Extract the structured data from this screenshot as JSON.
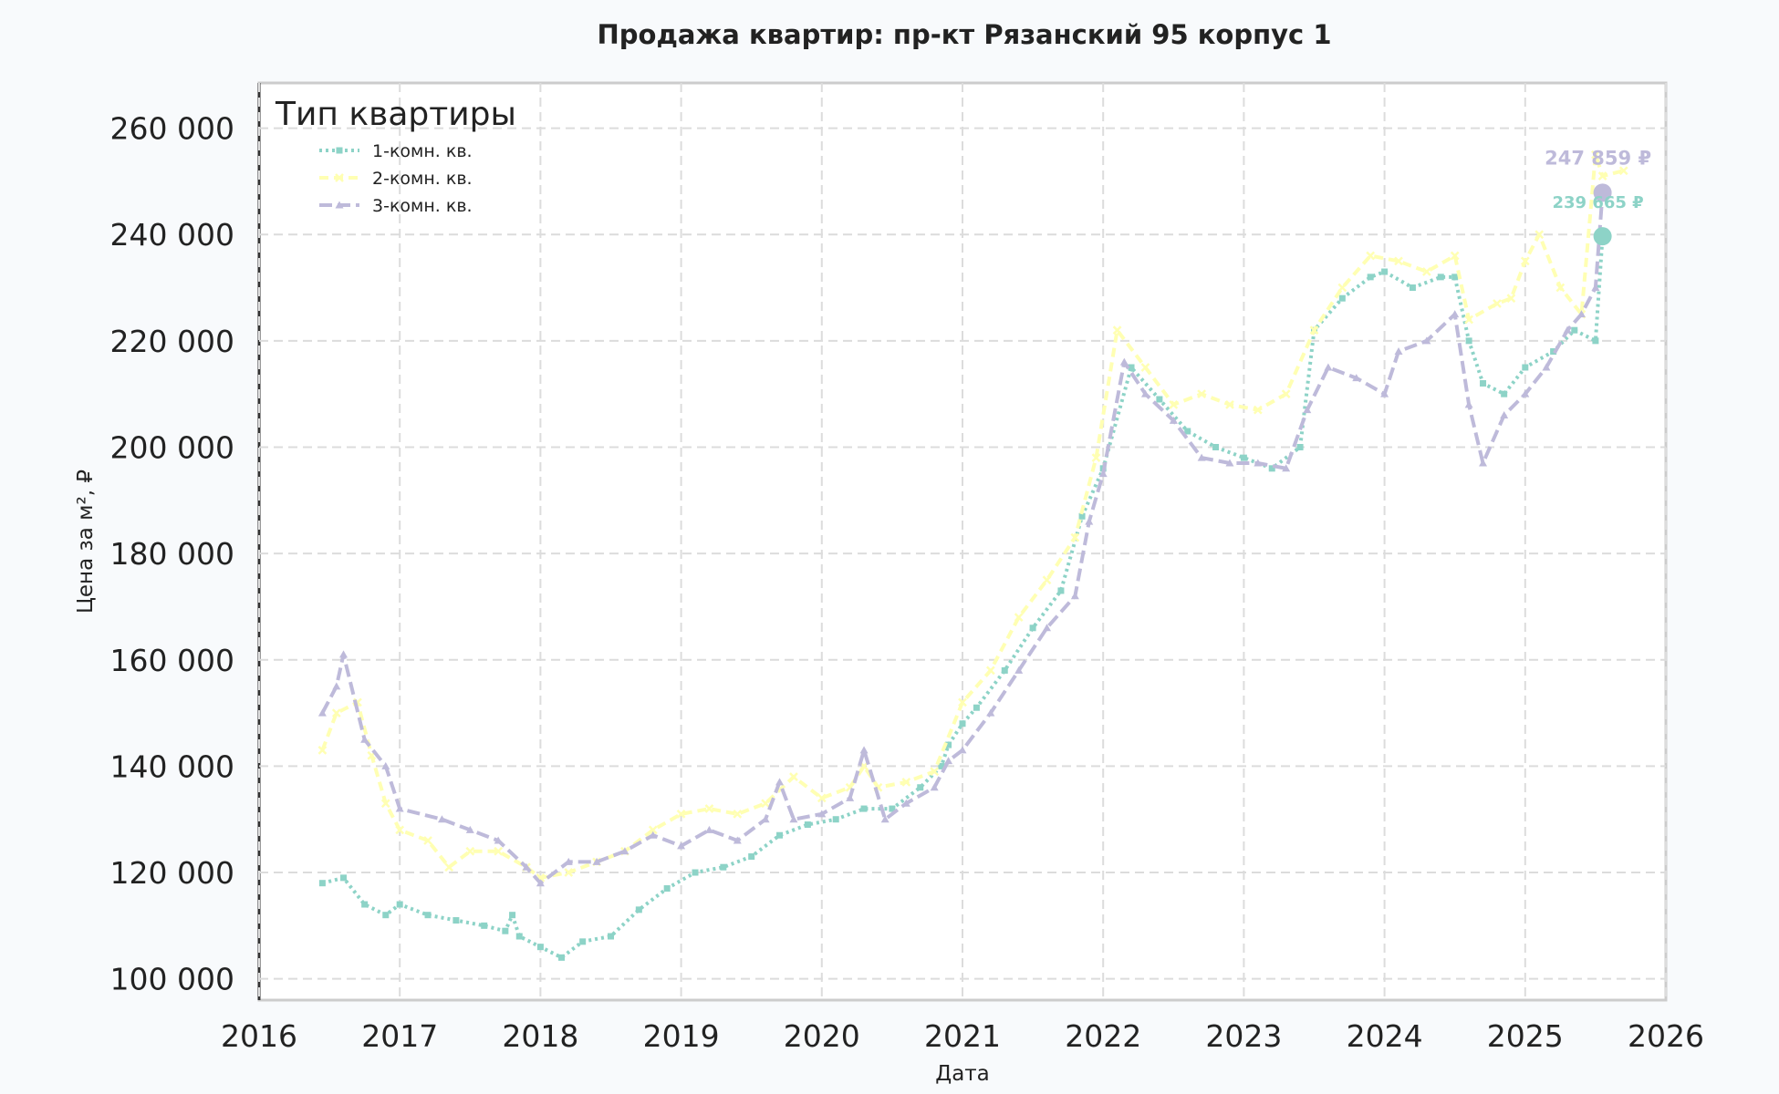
{
  "chart_data": {
    "type": "line",
    "title": "Продажа квартир: пр-кт Рязанский 95 корпус 1",
    "xlabel": "Дата",
    "ylabel": "Цена за м², ₽",
    "xlim": [
      2016,
      2026
    ],
    "ylim": [
      96000,
      268500
    ],
    "x_ticks": [
      "2016",
      "2017",
      "2018",
      "2019",
      "2020",
      "2021",
      "2022",
      "2023",
      "2024",
      "2025",
      "2026"
    ],
    "y_ticks": [
      100000,
      120000,
      140000,
      160000,
      180000,
      200000,
      220000,
      240000,
      260000
    ],
    "y_tick_labels": [
      "100 000",
      "120 000",
      "140 000",
      "160 000",
      "180 000",
      "200 000",
      "220 000",
      "240 000",
      "260 000"
    ],
    "grid": true,
    "legend": {
      "title": "Тип квартиры",
      "position": "top-left"
    },
    "series": [
      {
        "name": "1-комн. кв.",
        "color": "#8dd3c7",
        "marker": "square",
        "x": [
          2016.45,
          2016.6,
          2016.75,
          2016.9,
          2017.0,
          2017.2,
          2017.4,
          2017.6,
          2017.75,
          2017.8,
          2017.85,
          2018.0,
          2018.15,
          2018.3,
          2018.5,
          2018.7,
          2018.9,
          2019.1,
          2019.3,
          2019.5,
          2019.7,
          2019.9,
          2020.1,
          2020.3,
          2020.5,
          2020.7,
          2020.85,
          2020.9,
          2021.0,
          2021.1,
          2021.3,
          2021.5,
          2021.7,
          2021.85,
          2022.0,
          2022.2,
          2022.4,
          2022.6,
          2022.8,
          2023.0,
          2023.2,
          2023.4,
          2023.5,
          2023.7,
          2023.9,
          2024.0,
          2024.2,
          2024.4,
          2024.5,
          2024.6,
          2024.7,
          2024.85,
          2025.0,
          2025.2,
          2025.35,
          2025.5,
          2025.55
        ],
        "y": [
          118000,
          119000,
          114000,
          112000,
          114000,
          112000,
          111000,
          110000,
          109000,
          112000,
          108000,
          106000,
          104000,
          107000,
          108000,
          113000,
          117000,
          120000,
          121000,
          123000,
          127000,
          129000,
          130000,
          132000,
          132000,
          136000,
          140000,
          144000,
          148000,
          151000,
          158000,
          166000,
          173000,
          187000,
          196000,
          215000,
          209000,
          203000,
          200000,
          198000,
          196000,
          200000,
          222000,
          228000,
          232000,
          233000,
          230000,
          232000,
          232000,
          220000,
          212000,
          210000,
          215000,
          218000,
          222000,
          220000,
          239665
        ]
      },
      {
        "name": "2-комн. кв.",
        "color": "#ffffb3",
        "marker": "cross",
        "x": [
          2016.45,
          2016.55,
          2016.7,
          2016.8,
          2016.9,
          2017.0,
          2017.2,
          2017.35,
          2017.5,
          2017.7,
          2017.9,
          2018.0,
          2018.2,
          2018.4,
          2018.6,
          2018.8,
          2019.0,
          2019.2,
          2019.4,
          2019.6,
          2019.8,
          2020.0,
          2020.2,
          2020.3,
          2020.4,
          2020.6,
          2020.8,
          2021.0,
          2021.2,
          2021.4,
          2021.6,
          2021.8,
          2021.95,
          2022.1,
          2022.3,
          2022.5,
          2022.7,
          2022.9,
          2023.1,
          2023.3,
          2023.5,
          2023.7,
          2023.9,
          2024.1,
          2024.3,
          2024.5,
          2024.6,
          2024.8,
          2024.9,
          2025.0,
          2025.1,
          2025.25,
          2025.4,
          2025.5,
          2025.55,
          2025.7
        ],
        "y": [
          143000,
          150000,
          152000,
          142000,
          133000,
          128000,
          126000,
          121000,
          124000,
          124000,
          121000,
          119000,
          120000,
          122000,
          124000,
          128000,
          131000,
          132000,
          131000,
          133000,
          138000,
          134000,
          136000,
          140000,
          136000,
          137000,
          139000,
          152000,
          158000,
          168000,
          175000,
          183000,
          198000,
          222000,
          215000,
          208000,
          210000,
          208000,
          207000,
          210000,
          222000,
          230000,
          236000,
          235000,
          233000,
          236000,
          224000,
          227000,
          228000,
          235000,
          240000,
          230000,
          225000,
          255000,
          251000,
          252000
        ]
      },
      {
        "name": "3-комн. кв.",
        "color": "#bebada",
        "marker": "triangle",
        "x": [
          2016.45,
          2016.55,
          2016.6,
          2016.75,
          2016.9,
          2017.0,
          2017.3,
          2017.5,
          2017.7,
          2017.9,
          2018.0,
          2018.2,
          2018.4,
          2018.6,
          2018.8,
          2019.0,
          2019.2,
          2019.4,
          2019.6,
          2019.7,
          2019.8,
          2020.0,
          2020.2,
          2020.3,
          2020.45,
          2020.6,
          2020.8,
          2020.9,
          2021.0,
          2021.2,
          2021.4,
          2021.6,
          2021.8,
          2021.9,
          2022.0,
          2022.15,
          2022.3,
          2022.5,
          2022.7,
          2022.9,
          2023.1,
          2023.3,
          2023.45,
          2023.6,
          2023.8,
          2024.0,
          2024.1,
          2024.3,
          2024.5,
          2024.6,
          2024.7,
          2024.85,
          2025.0,
          2025.15,
          2025.3,
          2025.4,
          2025.5,
          2025.55
        ],
        "y": [
          150000,
          155000,
          161000,
          145000,
          140000,
          132000,
          130000,
          128000,
          126000,
          121000,
          118000,
          122000,
          122000,
          124000,
          127000,
          125000,
          128000,
          126000,
          130000,
          137000,
          130000,
          131000,
          134000,
          143000,
          130000,
          133000,
          136000,
          141000,
          143000,
          150000,
          158000,
          166000,
          172000,
          186000,
          195000,
          216000,
          210000,
          205000,
          198000,
          197000,
          197000,
          196000,
          207000,
          215000,
          213000,
          210000,
          218000,
          220000,
          225000,
          208000,
          197000,
          206000,
          210000,
          215000,
          222000,
          225000,
          230000,
          247859
        ]
      }
    ],
    "end_points": [
      {
        "series": "3-комн. кв.",
        "x": 2025.55,
        "y": 247859,
        "label": "247 859 ₽"
      },
      {
        "series": "1-комн. кв.",
        "x": 2025.55,
        "y": 239665,
        "label": "239 665 ₽"
      }
    ]
  }
}
